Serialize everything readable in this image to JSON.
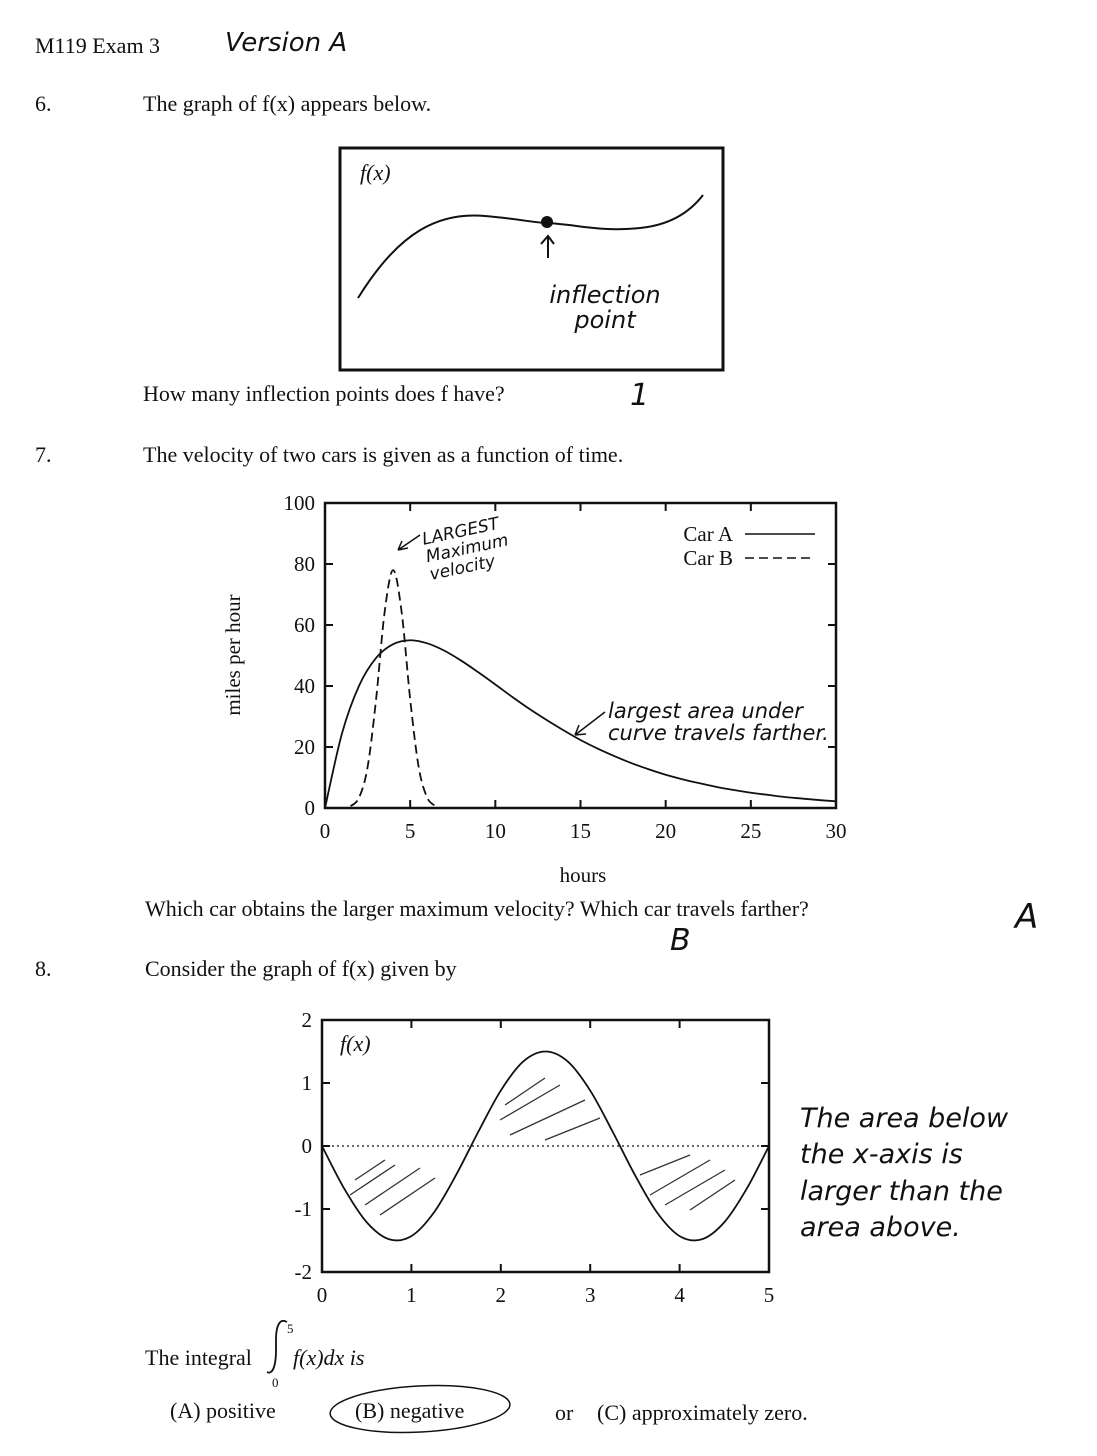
{
  "header": {
    "course": "M119 Exam 3",
    "version_handwritten": "Version A"
  },
  "q6": {
    "number": "6.",
    "prompt": "The graph of f(x) appears below.",
    "graph_label": "f(x)",
    "annotation": "inflection point",
    "question": "How many inflection points does f have?",
    "answer_handwritten": "1"
  },
  "q7": {
    "number": "7.",
    "prompt": "The velocity of two cars is given as a function of time.",
    "question": "Which car obtains the larger maximum velocity? Which car travels farther?",
    "answer_max_velocity": "B",
    "answer_farther": "A",
    "annotation_peak": "LARGEST Maximum velocity",
    "annotation_area": "largest area under curve travels farther."
  },
  "q8": {
    "number": "8.",
    "prompt": "Consider the graph of f(x) given by",
    "graph_label": "f(x)",
    "note": [
      "The area below",
      "the x-axis is",
      "larger than the",
      "area above."
    ],
    "integral_prefix": "The integral",
    "integral_lower": "0",
    "integral_upper": "5",
    "integral_body": "f(x)dx is",
    "option_a": "(A)  positive",
    "option_b": "(B)  negative",
    "or": "or",
    "option_c": "(C)  approximately zero.",
    "selected_option": "B"
  },
  "chart_data": [
    {
      "type": "line",
      "xlabel": "hours",
      "ylabel": "miles per hour",
      "xlim": [
        0,
        30
      ],
      "ylim": [
        0,
        100
      ],
      "xticks": [
        "0",
        "5",
        "10",
        "15",
        "20",
        "25",
        "30"
      ],
      "yticks": [
        "0",
        "20",
        "40",
        "60",
        "80",
        "100"
      ],
      "legend": "top-right",
      "grid": false,
      "series": [
        {
          "name": "Car A",
          "style": "solid",
          "x": [
            0,
            1,
            2,
            3,
            4,
            5,
            6,
            7,
            8,
            9,
            10,
            11,
            12,
            13,
            14,
            15,
            16,
            17,
            18,
            19,
            20,
            21,
            22,
            23,
            24,
            25,
            26,
            27,
            28,
            29,
            30
          ],
          "y": [
            0,
            24.5,
            40.1,
            49.2,
            53.7,
            55.0,
            54.0,
            51.6,
            48.3,
            44.5,
            40.5,
            36.4,
            32.5,
            28.9,
            25.5,
            22.3,
            19.5,
            17.0,
            14.7,
            12.7,
            10.9,
            9.4,
            8.1,
            6.9,
            5.9,
            5.0,
            4.3,
            3.6,
            3.1,
            2.6,
            2.2
          ]
        },
        {
          "name": "Car B",
          "style": "dashed",
          "x": [
            1.5,
            2,
            2.5,
            3,
            3.5,
            4,
            4.5,
            5,
            5.5,
            6,
            6.5
          ],
          "y": [
            0.6,
            3.4,
            13.4,
            35.7,
            64.2,
            78,
            64.2,
            35.7,
            13.4,
            3.4,
            0.6
          ]
        }
      ]
    },
    {
      "type": "line",
      "title": "f(x)",
      "xlim": [
        0,
        5
      ],
      "ylim": [
        -2,
        2
      ],
      "xticks": [
        "0",
        "1",
        "2",
        "3",
        "4",
        "5"
      ],
      "yticks": [
        "-2",
        "-1",
        "0",
        "1",
        "2"
      ],
      "zero_line": "dotted",
      "grid": false,
      "series": [
        {
          "x": [
            0,
            0.25,
            0.5,
            0.75,
            1,
            1.25,
            1.5,
            1.75,
            2,
            2.25,
            2.5,
            2.75,
            3,
            3.25,
            3.5,
            3.75,
            4,
            4.25,
            4.5,
            4.75,
            5
          ],
          "y": [
            0,
            -0.68,
            -1.21,
            -1.48,
            -1.43,
            -1.06,
            -0.46,
            0.23,
            0.88,
            1.34,
            1.5,
            1.34,
            0.88,
            0.23,
            -0.46,
            -1.06,
            -1.43,
            -1.48,
            -1.21,
            -0.68,
            0
          ]
        }
      ]
    }
  ]
}
